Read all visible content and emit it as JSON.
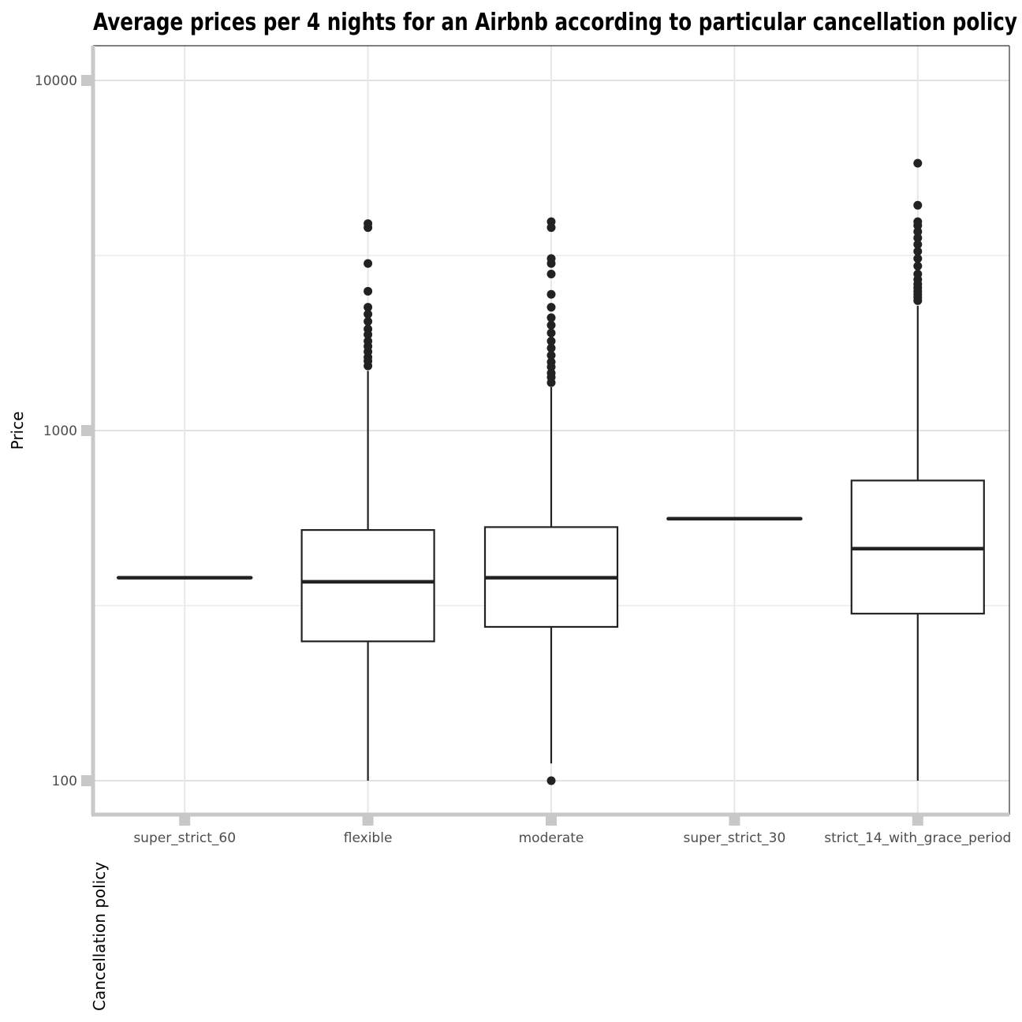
{
  "chart_data": {
    "type": "boxplot",
    "title": "Average prices per 4 nights for an Airbnb according to particular cancellation policy",
    "xlabel": "Cancellation policy",
    "ylabel": "Price",
    "y_scale": "log10",
    "ylim": [
      80,
      11500
    ],
    "y_ticks": [
      100,
      1000,
      10000
    ],
    "y_tick_labels": [
      "100",
      "1000",
      "10000"
    ],
    "grid": true,
    "categories": [
      "super_strict_60",
      "flexible",
      "moderate",
      "super_strict_30",
      "strict_14_with_grace_period"
    ],
    "boxes": [
      {
        "category": "super_strict_60",
        "min": 380,
        "q1": 380,
        "median": 380,
        "q3": 380,
        "max": 380,
        "outliers": []
      },
      {
        "category": "flexible",
        "min": 100,
        "q1": 250,
        "median": 370,
        "q3": 520,
        "max": 1480,
        "outliers": [
          1530,
          1580,
          1620,
          1680,
          1740,
          1800,
          1880,
          1950,
          2050,
          2150,
          2250,
          2500,
          3000,
          3800,
          3900
        ]
      },
      {
        "category": "moderate",
        "min": 112,
        "q1": 275,
        "median": 380,
        "q3": 530,
        "max": 1330,
        "outliers": [
          100,
          1370,
          1420,
          1460,
          1520,
          1570,
          1640,
          1720,
          1800,
          1900,
          2000,
          2100,
          2250,
          2450,
          2800,
          3000,
          3100,
          3800,
          3950
        ]
      },
      {
        "category": "super_strict_30",
        "min": 560,
        "q1": 560,
        "median": 560,
        "q3": 560,
        "max": 560,
        "outliers": []
      },
      {
        "category": "strict_14_with_grace_period",
        "min": 100,
        "q1": 300,
        "median": 460,
        "q3": 720,
        "max": 2270,
        "outliers": [
          2350,
          2400,
          2450,
          2500,
          2560,
          2620,
          2700,
          2800,
          2950,
          3100,
          3250,
          3400,
          3550,
          3700,
          3850,
          3950,
          4400,
          5800
        ]
      }
    ],
    "colors": {
      "box_line": "#222222",
      "outlier": "#222222",
      "grid_major": "#d0d0d0",
      "grid_minor": "#e8e8e8",
      "axis_line": "#c8c8c8",
      "frame": "#333333"
    }
  }
}
